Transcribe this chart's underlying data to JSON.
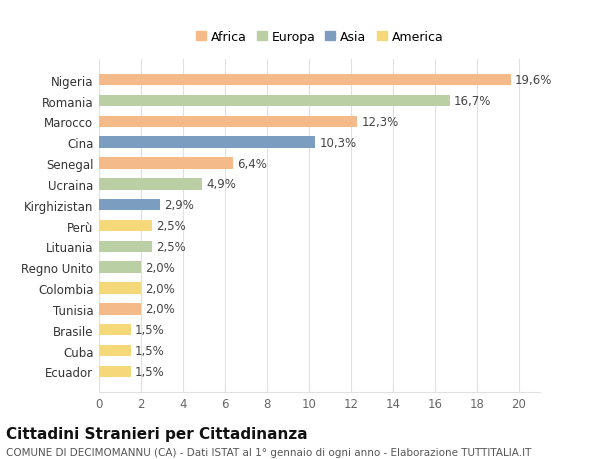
{
  "categories": [
    "Ecuador",
    "Cuba",
    "Brasile",
    "Tunisia",
    "Colombia",
    "Regno Unito",
    "Lituania",
    "Perù",
    "Kirghizistan",
    "Ucraina",
    "Senegal",
    "Cina",
    "Marocco",
    "Romania",
    "Nigeria"
  ],
  "values": [
    1.5,
    1.5,
    1.5,
    2.0,
    2.0,
    2.0,
    2.5,
    2.5,
    2.9,
    4.9,
    6.4,
    10.3,
    12.3,
    16.7,
    19.6
  ],
  "labels": [
    "1,5%",
    "1,5%",
    "1,5%",
    "2,0%",
    "2,0%",
    "2,0%",
    "2,5%",
    "2,5%",
    "2,9%",
    "4,9%",
    "6,4%",
    "10,3%",
    "12,3%",
    "16,7%",
    "19,6%"
  ],
  "continents": [
    "America",
    "America",
    "America",
    "Africa",
    "America",
    "Europa",
    "Europa",
    "America",
    "Asia",
    "Europa",
    "Africa",
    "Asia",
    "Africa",
    "Europa",
    "Africa"
  ],
  "continent_colors": {
    "Africa": "#F5BA8A",
    "Europa": "#BACFA4",
    "Asia": "#7B9DC0",
    "America": "#F5D87A"
  },
  "legend_order": [
    "Africa",
    "Europa",
    "Asia",
    "America"
  ],
  "xlim": [
    0,
    21
  ],
  "xticks": [
    0,
    2,
    4,
    6,
    8,
    10,
    12,
    14,
    16,
    18,
    20
  ],
  "title": "Cittadini Stranieri per Cittadinanza",
  "subtitle": "COMUNE DI DECIMOMANNU (CA) - Dati ISTAT al 1° gennaio di ogni anno - Elaborazione TUTTITALIA.IT",
  "background_color": "#ffffff",
  "bar_height": 0.55,
  "grid_color": "#e0e0e0",
  "label_fontsize": 8.5,
  "tick_fontsize": 8.5,
  "title_fontsize": 11,
  "subtitle_fontsize": 7.5
}
